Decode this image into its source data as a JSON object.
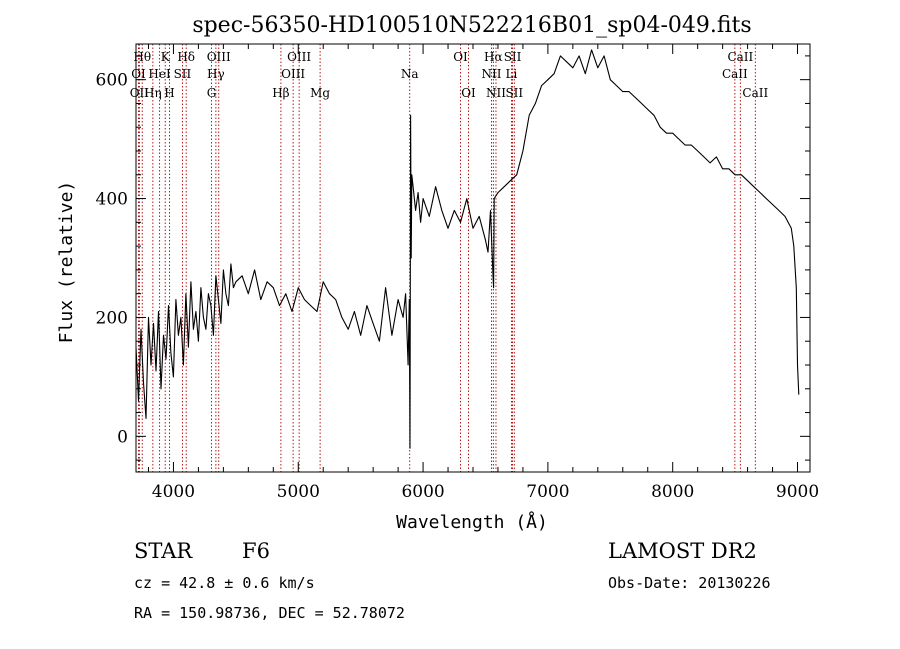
{
  "chart_data": {
    "type": "line",
    "title": "spec-56350-HD100510N522216B01_sp04-049.fits",
    "xlabel": "Wavelength (Å)",
    "ylabel": "Flux (relative)",
    "xlim": [
      3700,
      9100
    ],
    "ylim": [
      -60,
      660
    ],
    "x_ticks": [
      4000,
      5000,
      6000,
      7000,
      8000,
      9000
    ],
    "y_ticks": [
      0,
      200,
      400,
      600
    ],
    "grid": false,
    "series": [
      {
        "values_x": [
          3700,
          3720,
          3740,
          3760,
          3780,
          3800,
          3820,
          3840,
          3860,
          3880,
          3900,
          3920,
          3940,
          3960,
          3980,
          4000,
          4020,
          4040,
          4060,
          4080,
          4100,
          4120,
          4140,
          4160,
          4180,
          4200,
          4220,
          4240,
          4260,
          4280,
          4300,
          4320,
          4340,
          4360,
          4380,
          4400,
          4420,
          4440,
          4460,
          4480,
          4500,
          4550,
          4600,
          4650,
          4700,
          4750,
          4800,
          4850,
          4900,
          4950,
          5000,
          5050,
          5100,
          5150,
          5200,
          5250,
          5300,
          5350,
          5400,
          5450,
          5500,
          5550,
          5600,
          5650,
          5700,
          5750,
          5800,
          5840,
          5860,
          5880,
          5890,
          5895,
          5900,
          5905,
          5910,
          5920,
          5940,
          5960,
          5980,
          6000,
          6050,
          6100,
          6150,
          6200,
          6250,
          6300,
          6350,
          6400,
          6450,
          6500,
          6520,
          6540,
          6560,
          6565,
          6570,
          6600,
          6650,
          6700,
          6750,
          6800,
          6850,
          6900,
          6950,
          7000,
          7050,
          7100,
          7150,
          7200,
          7250,
          7300,
          7350,
          7400,
          7450,
          7500,
          7550,
          7600,
          7650,
          7700,
          7750,
          7800,
          7850,
          7900,
          7950,
          8000,
          8050,
          8100,
          8150,
          8200,
          8250,
          8300,
          8350,
          8400,
          8450,
          8500,
          8550,
          8600,
          8650,
          8700,
          8750,
          8800,
          8850,
          8900,
          8950,
          8970,
          8990,
          9000,
          9010
        ],
        "values_y": [
          150,
          60,
          180,
          90,
          30,
          200,
          120,
          190,
          110,
          210,
          80,
          170,
          130,
          220,
          140,
          100,
          230,
          170,
          200,
          120,
          240,
          150,
          260,
          180,
          210,
          160,
          250,
          200,
          180,
          240,
          220,
          170,
          270,
          230,
          190,
          280,
          240,
          220,
          290,
          250,
          260,
          270,
          240,
          280,
          230,
          260,
          250,
          220,
          240,
          210,
          250,
          230,
          220,
          210,
          260,
          240,
          230,
          200,
          180,
          210,
          170,
          220,
          190,
          160,
          250,
          170,
          230,
          200,
          240,
          120,
          230,
          -20,
          540,
          300,
          440,
          420,
          380,
          410,
          360,
          400,
          370,
          420,
          380,
          350,
          380,
          360,
          400,
          350,
          370,
          330,
          310,
          380,
          270,
          250,
          400,
          410,
          420,
          430,
          440,
          480,
          540,
          560,
          590,
          600,
          610,
          640,
          630,
          620,
          640,
          610,
          650,
          620,
          640,
          600,
          590,
          580,
          580,
          570,
          560,
          550,
          540,
          520,
          510,
          510,
          500,
          490,
          490,
          480,
          470,
          460,
          470,
          450,
          450,
          440,
          440,
          430,
          420,
          410,
          400,
          390,
          380,
          370,
          350,
          320,
          250,
          120,
          70
        ]
      }
    ],
    "line_labels": [
      {
        "label": "OI",
        "wavelength": 3720,
        "row": 2
      },
      {
        "label": "Hθ",
        "wavelength": 3750,
        "row": 1
      },
      {
        "label": "OII",
        "wavelength": 3727,
        "row": 3
      },
      {
        "label": "Hη",
        "wavelength": 3835,
        "row": 3
      },
      {
        "label": "HeI",
        "wavelength": 3889,
        "row": 2
      },
      {
        "label": "K",
        "wavelength": 3934,
        "row": 1
      },
      {
        "label": "H",
        "wavelength": 3968,
        "row": 3
      },
      {
        "label": "SII",
        "wavelength": 4072,
        "row": 2
      },
      {
        "label": "Hδ",
        "wavelength": 4102,
        "row": 1
      },
      {
        "label": "G",
        "wavelength": 4305,
        "row": 3
      },
      {
        "label": "Hγ",
        "wavelength": 4340,
        "row": 2
      },
      {
        "label": "OIII",
        "wavelength": 4363,
        "row": 1
      },
      {
        "label": "Hβ",
        "wavelength": 4861,
        "row": 3
      },
      {
        "label": "OIII",
        "wavelength": 4959,
        "row": 2
      },
      {
        "label": "OIII",
        "wavelength": 5007,
        "row": 1
      },
      {
        "label": "Mg",
        "wavelength": 5175,
        "row": 3
      },
      {
        "label": "Na",
        "wavelength": 5893,
        "row": 2
      },
      {
        "label": "OI",
        "wavelength": 6300,
        "row": 1
      },
      {
        "label": "OI",
        "wavelength": 6364,
        "row": 3
      },
      {
        "label": "NII",
        "wavelength": 6548,
        "row": 2
      },
      {
        "label": "Hα",
        "wavelength": 6563,
        "row": 1
      },
      {
        "label": "NII",
        "wavelength": 6584,
        "row": 3
      },
      {
        "label": "Li",
        "wavelength": 6708,
        "row": 2
      },
      {
        "label": "SII",
        "wavelength": 6717,
        "row": 1
      },
      {
        "label": "SII",
        "wavelength": 6731,
        "row": 3
      },
      {
        "label": "CaII",
        "wavelength": 8498,
        "row": 2
      },
      {
        "label": "CaII",
        "wavelength": 8542,
        "row": 1
      },
      {
        "label": "CaII",
        "wavelength": 8662,
        "row": 3
      }
    ],
    "colors": {
      "spectrum": "#000000",
      "line_markers": "#b00000",
      "axes": "#000000"
    }
  },
  "info": {
    "object_class": "STAR",
    "subclass": "F6",
    "survey": "LAMOST DR2",
    "redshift": "cz = 42.8 ± 0.6 km/s",
    "obs_date": "Obs-Date: 20130226",
    "coords": "RA = 150.98736, DEC =  52.78072"
  }
}
